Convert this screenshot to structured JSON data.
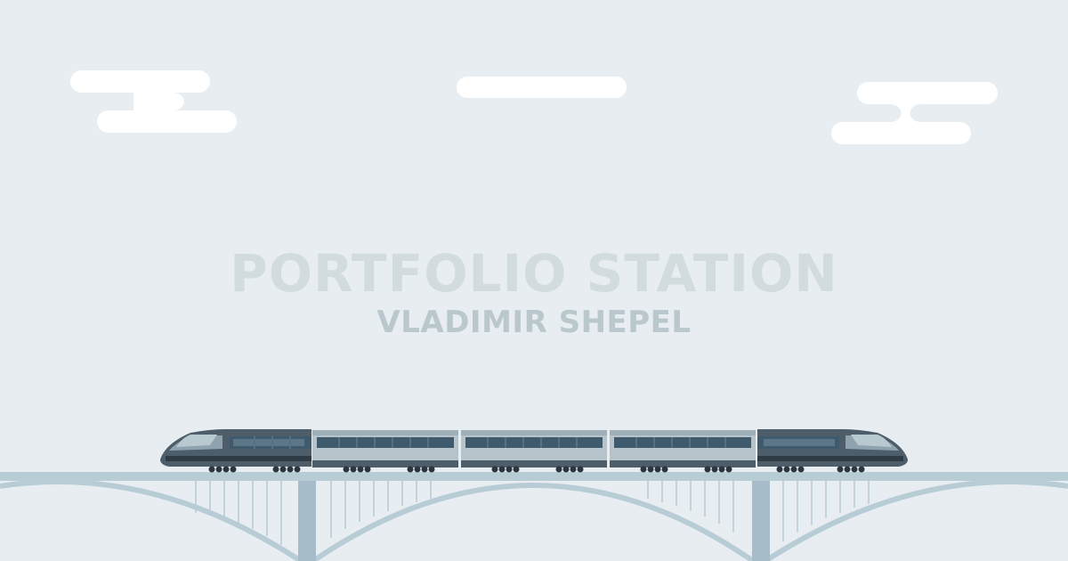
{
  "hero": {
    "title": "PORTFOLIO STATION",
    "subtitle": "VLADIMIR SHEPEL"
  },
  "colors": {
    "background": "#e8edf1",
    "cloud": "#ffffff",
    "title": "#d2dcdf",
    "subtitle": "#bac8ce",
    "bridge": "#b8ccd6",
    "bridge_dark": "#a6bcc8",
    "train_body": "#b6c3cb",
    "train_dark": "#4d5d69",
    "train_window": "#3e5a6c",
    "wheel": "#2b3640"
  },
  "icons": [
    "cloud-icon",
    "train-icon",
    "bridge-icon"
  ]
}
